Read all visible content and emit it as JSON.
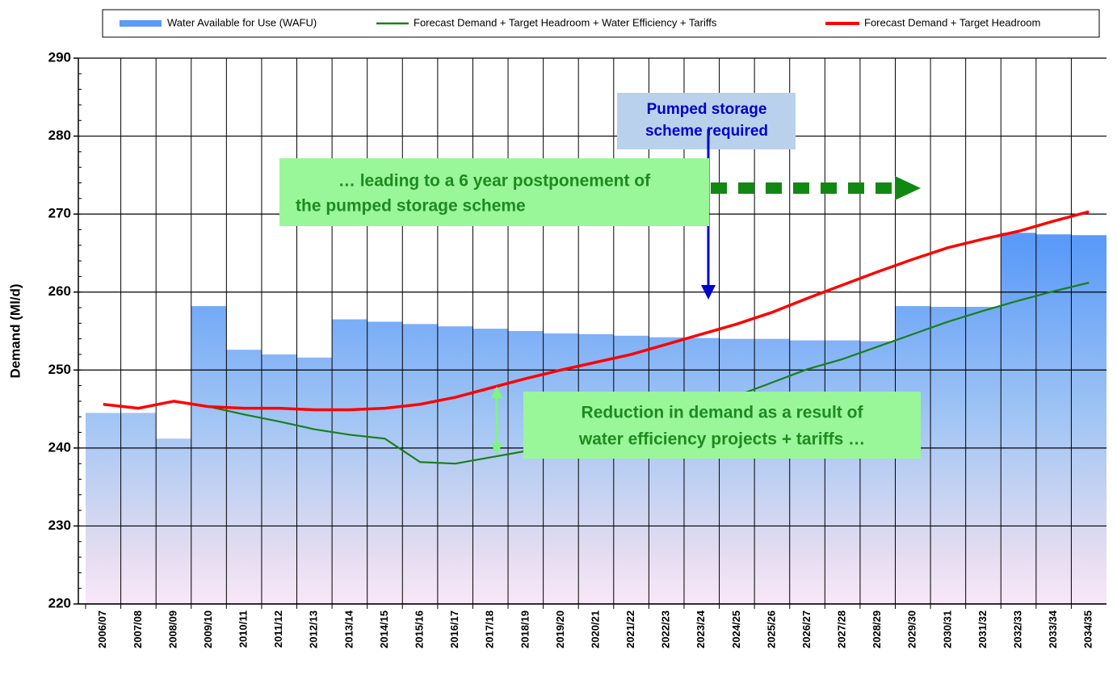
{
  "chart_data": {
    "type": "bar_line",
    "y_label": "Demand (Ml/d)",
    "categories": [
      "2006/07",
      "2007/08",
      "2008/09",
      "2009/10",
      "2010/11",
      "2011/12",
      "2012/13",
      "2013/14",
      "2014/15",
      "2015/16",
      "2016/17",
      "2017/18",
      "2018/19",
      "2019/20",
      "2020/21",
      "2021/22",
      "2022/23",
      "2023/24",
      "2024/25",
      "2025/26",
      "2026/27",
      "2027/28",
      "2028/29",
      "2029/30",
      "2030/31",
      "2031/32",
      "2032/33",
      "2033/34",
      "2034/35"
    ],
    "series": [
      {
        "name": "Water Available for Use (WAFU)",
        "type": "bar",
        "color": "#5b9bf7",
        "values": [
          244.5,
          244.5,
          241.2,
          258.2,
          252.6,
          252.0,
          251.6,
          256.5,
          256.2,
          255.9,
          255.6,
          255.3,
          255.0,
          254.7,
          254.6,
          254.4,
          254.2,
          254.1,
          254.0,
          254.0,
          253.8,
          253.8,
          253.7,
          258.2,
          258.1,
          258.1,
          267.6,
          267.4,
          267.3
        ]
      },
      {
        "name": "Forecast Demand + Target Headroom + Water Efficiency + Tariffs",
        "type": "line",
        "color": "#1a7f1a",
        "values": [
          null,
          null,
          null,
          245.3,
          244.3,
          243.4,
          242.4,
          241.7,
          241.2,
          238.2,
          238.0,
          238.8,
          239.6,
          240.5,
          241.5,
          242.6,
          243.8,
          245.2,
          246.7,
          248.4,
          250.1,
          251.4,
          253.0,
          254.6,
          256.2,
          257.6,
          258.9,
          260.1,
          261.2
        ]
      },
      {
        "name": "Forecast Demand + Target Headroom",
        "type": "line",
        "color": "#ff0000",
        "values": [
          245.6,
          245.1,
          246.0,
          245.3,
          245.1,
          245.1,
          244.9,
          244.9,
          245.1,
          245.6,
          246.5,
          247.7,
          248.9,
          250.0,
          251.0,
          252.0,
          253.3,
          254.6,
          255.9,
          257.4,
          259.2,
          260.9,
          262.6,
          264.2,
          265.7,
          266.8,
          267.8,
          269.1,
          270.3
        ]
      }
    ],
    "ylim": [
      220,
      290
    ],
    "yticks": [
      220,
      230,
      240,
      250,
      260,
      270,
      280,
      290
    ],
    "grid": true,
    "annotations": [
      {
        "lines": [
          "Pumped storage",
          "scheme required"
        ]
      },
      {
        "lines": [
          "… leading to a 6 year postponement of",
          "the pumped storage scheme"
        ]
      },
      {
        "lines": [
          "Reduction in demand as a result of",
          "water efficiency projects + tariffs …"
        ]
      }
    ]
  }
}
